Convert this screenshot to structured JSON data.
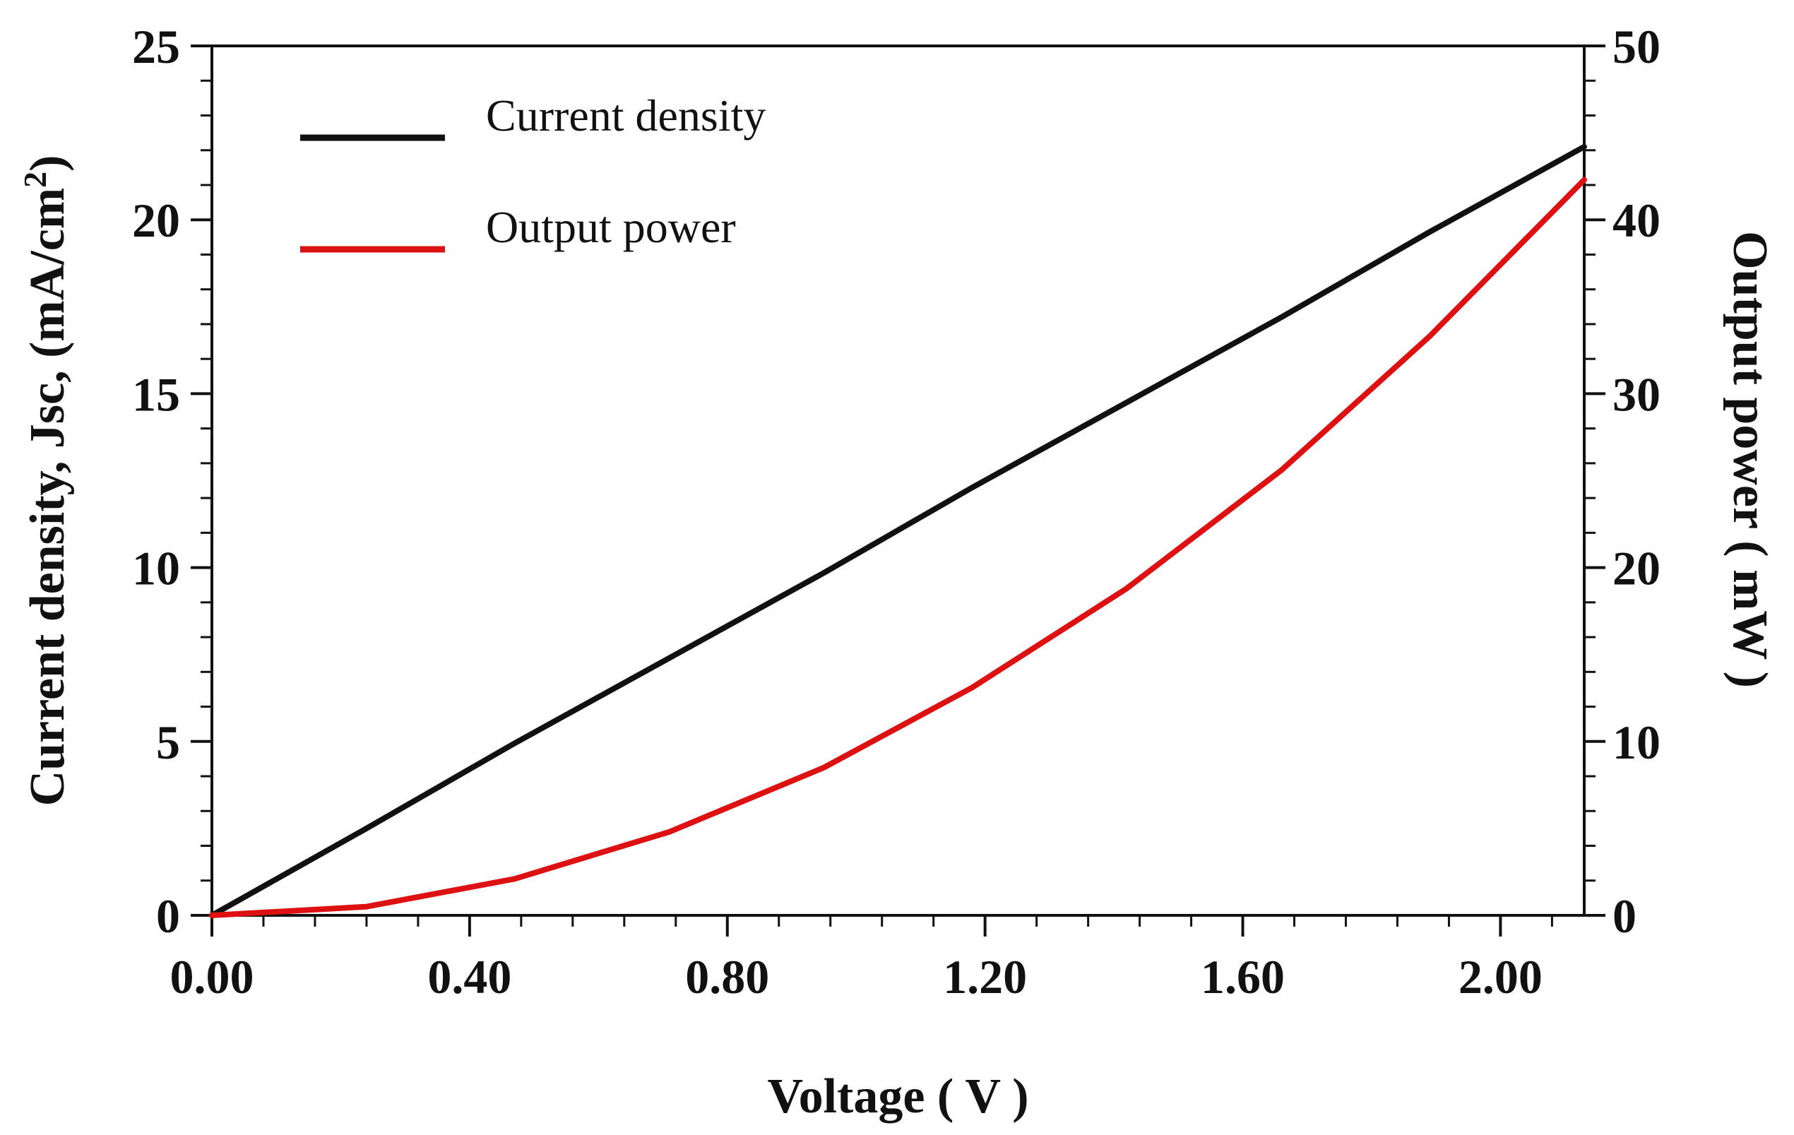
{
  "chart_data": {
    "type": "line",
    "title": "",
    "xlabel": "Voltage ( V )",
    "ylabel": "Current density, Jsc, (mA/cm²)",
    "ylabel_parts": {
      "base": "Current density, Jsc, (mA/cm",
      "sup": "2",
      "end": ")"
    },
    "y2label": "Output power ( mW )",
    "xlim": [
      0,
      2.13
    ],
    "ylim": [
      0,
      25
    ],
    "y2lim": [
      0,
      50
    ],
    "x_ticks": [
      0,
      0.4,
      0.8,
      1.2,
      1.6,
      2.0
    ],
    "x_tick_labels": [
      "0.00",
      "0.40",
      "0.80",
      "1.20",
      "1.60",
      "2.00"
    ],
    "y_ticks": [
      0,
      5,
      10,
      15,
      20,
      25
    ],
    "y_tick_labels": [
      "0",
      "5",
      "10",
      "15",
      "20",
      "25"
    ],
    "y2_ticks": [
      0,
      10,
      20,
      30,
      40,
      50
    ],
    "y2_tick_labels": [
      "0",
      "10",
      "20",
      "30",
      "40",
      "50"
    ],
    "grid": false,
    "legend_position": "top-left",
    "series": [
      {
        "name": "Current density",
        "axis": "left",
        "color": "#111111",
        "x": [
          0,
          0.24,
          0.47,
          0.71,
          0.95,
          1.18,
          1.42,
          1.66,
          1.89,
          2.13
        ],
        "y": [
          0,
          2.5,
          4.95,
          7.4,
          9.85,
          12.3,
          14.75,
          17.2,
          19.65,
          22.1
        ]
      },
      {
        "name": "Output power",
        "axis": "right",
        "color": "#dd1111",
        "x": [
          0,
          0.24,
          0.47,
          0.71,
          0.95,
          1.18,
          1.42,
          1.66,
          1.89,
          2.13
        ],
        "y": [
          0,
          0.5,
          2.1,
          4.8,
          8.5,
          13.1,
          18.8,
          25.6,
          33.3,
          42.3
        ]
      }
    ]
  }
}
